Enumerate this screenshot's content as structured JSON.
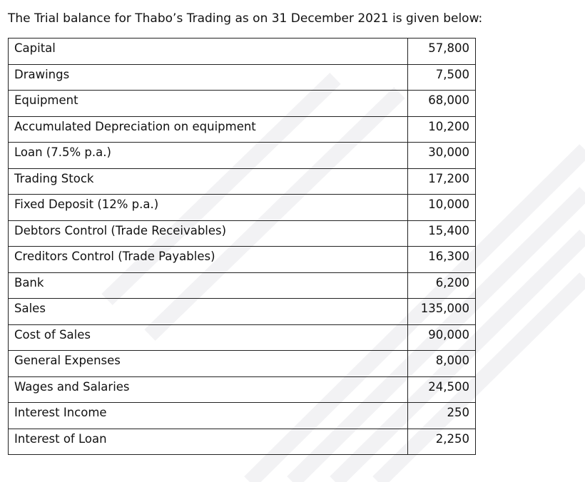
{
  "header": {
    "title": "The Trial balance for Thabo’s Trading as on 31 December 2021 is given below:"
  },
  "table": {
    "rows": [
      [
        "Capital",
        "57,800"
      ],
      [
        "Drawings",
        "7,500"
      ],
      [
        "Equipment",
        "68,000"
      ],
      [
        "Accumulated Depreciation on equipment",
        "10,200"
      ],
      [
        "Loan (7.5% p.a.)",
        "30,000"
      ],
      [
        "Trading Stock",
        "17,200"
      ],
      [
        "Fixed Deposit (12% p.a.)",
        "10,000"
      ],
      [
        "Debtors Control (Trade Receivables)",
        "15,400"
      ],
      [
        "Creditors Control (Trade Payables)",
        "16,300"
      ],
      [
        "Bank",
        "6,200"
      ],
      [
        "Sales",
        "135,000"
      ],
      [
        "Cost of Sales",
        "90,000"
      ],
      [
        "General Expenses",
        "8,000"
      ],
      [
        "Wages and Salaries",
        "24,500"
      ],
      [
        "Interest Income",
        "250"
      ],
      [
        "Interest of Loan",
        "2,250"
      ]
    ]
  }
}
